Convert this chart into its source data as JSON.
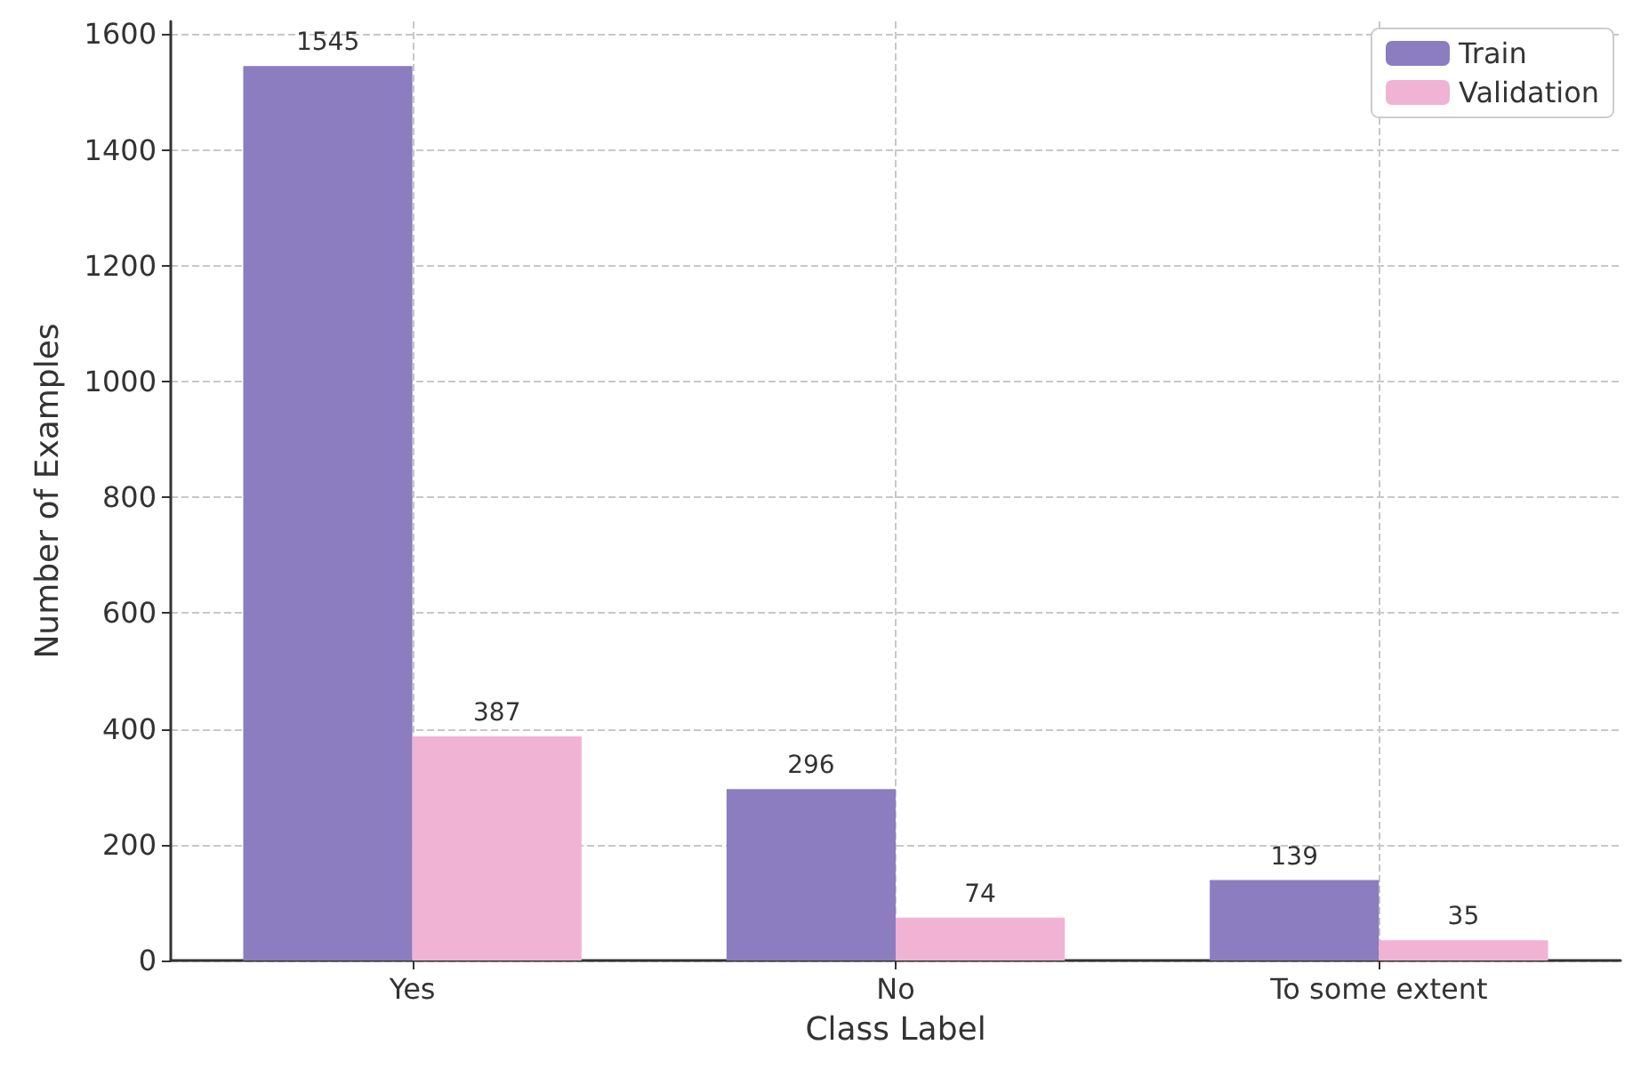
{
  "chart_data": {
    "type": "bar",
    "xlabel": "Class Label",
    "ylabel": "Number of Examples",
    "categories": [
      "Yes",
      "No",
      "To some extent"
    ],
    "series": [
      {
        "name": "Train",
        "color": "#8c7dc0",
        "values": [
          1545,
          296,
          139
        ]
      },
      {
        "name": "Validation",
        "color": "#f0b3d3",
        "values": [
          387,
          74,
          35
        ]
      }
    ],
    "ylim": [
      0,
      1622
    ],
    "yticks": [
      0,
      200,
      400,
      600,
      800,
      1000,
      1200,
      1400,
      1600
    ],
    "grid": true,
    "legend": "top right",
    "data_labels": true
  }
}
